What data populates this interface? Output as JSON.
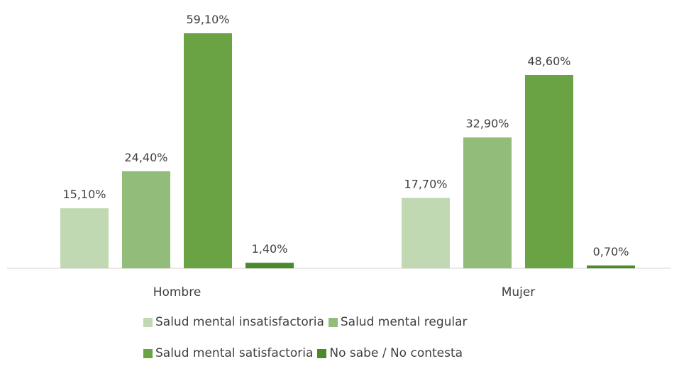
{
  "chart_data": {
    "type": "bar",
    "categories": [
      "Hombre",
      "Mujer"
    ],
    "series": [
      {
        "name": "Salud mental insatisfactoria",
        "values": [
          15.1,
          17.7
        ],
        "labels": [
          "15,10%",
          "17,70%"
        ],
        "color": "#c0d9b3"
      },
      {
        "name": "Salud mental regular",
        "values": [
          24.4,
          32.9
        ],
        "labels": [
          "24,40%",
          "32,90%"
        ],
        "color": "#92bc7a"
      },
      {
        "name": "Salud mental satisfactoria",
        "values": [
          59.1,
          48.6
        ],
        "labels": [
          "59,10%",
          "48,60%"
        ],
        "color": "#6aa343"
      },
      {
        "name": "No sabe / No contesta",
        "values": [
          1.4,
          0.7
        ],
        "labels": [
          "1,40%",
          "0,70%"
        ],
        "color": "#4a8a2c"
      }
    ],
    "ylim": [
      0,
      60
    ],
    "grid": false,
    "legend_position": "bottom"
  }
}
